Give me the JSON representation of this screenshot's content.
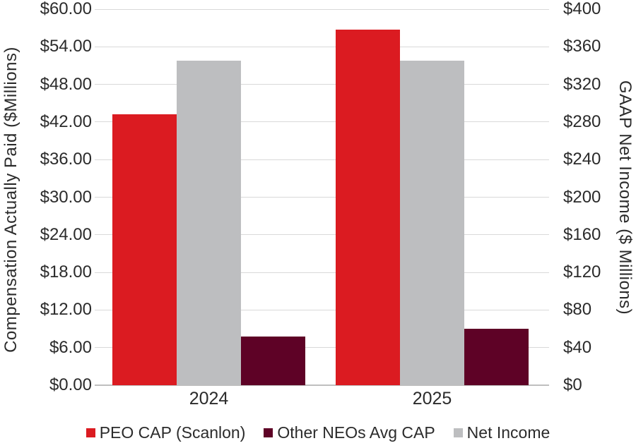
{
  "chart_data": {
    "type": "bar",
    "title": "",
    "categories": [
      "2024",
      "2025"
    ],
    "series": [
      {
        "name": "PEO CAP (Scanlon)",
        "color": "#db1b21",
        "axis": "left",
        "slot": 0,
        "values": [
          43.2,
          56.7
        ]
      },
      {
        "name": "Other NEOs Avg CAP",
        "color": "#5e0226",
        "axis": "left",
        "slot": 2,
        "values": [
          7.8,
          9.0
        ]
      },
      {
        "name": "Net Income",
        "color": "#bdbec0",
        "axis": "right",
        "slot": 1,
        "values": [
          345,
          345
        ]
      }
    ],
    "left_axis": {
      "label": "Compensation Actually Paid ($Millions)",
      "min": 0,
      "max": 60,
      "step": 6,
      "tick_labels": [
        "$0.00",
        "$6.00",
        "$12.00",
        "$18.00",
        "$24.00",
        "$30.00",
        "$36.00",
        "$42.00",
        "$48.00",
        "$54.00",
        "$60.00"
      ]
    },
    "right_axis": {
      "label": "GAAP Net Income ($ Millions)",
      "min": 0,
      "max": 400,
      "step": 40,
      "tick_labels": [
        "$0",
        "$40",
        "$80",
        "$120",
        "$160",
        "$200",
        "$240",
        "$280",
        "$320",
        "$360",
        "$400"
      ]
    },
    "grid": true,
    "legend_position": "bottom",
    "colors": {
      "gridline": "#d9d9d9",
      "axis_line": "#bfbfbf",
      "text": "#2b2b2b"
    }
  }
}
